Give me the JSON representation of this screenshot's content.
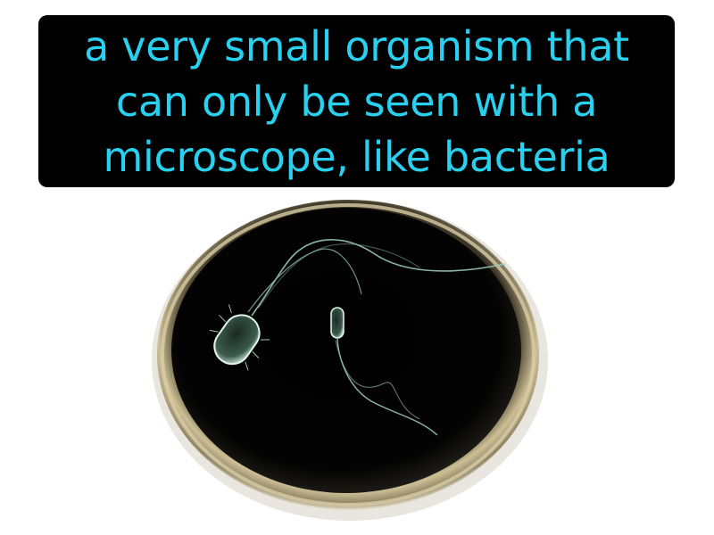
{
  "definition": {
    "lines": [
      "a very small organism that",
      "can only be seen with a",
      "microscope, like bacteria"
    ]
  },
  "colors": {
    "text": "#28d1f0",
    "box_background": "#000000",
    "page_background": "#ffffff",
    "dish_rim": "#c9b98c",
    "dish_interior": "#050505",
    "bacterium": "#c8e8d8"
  },
  "illustration": {
    "subject": "petri-dish-with-bacteria",
    "bacteria_count": 2
  }
}
